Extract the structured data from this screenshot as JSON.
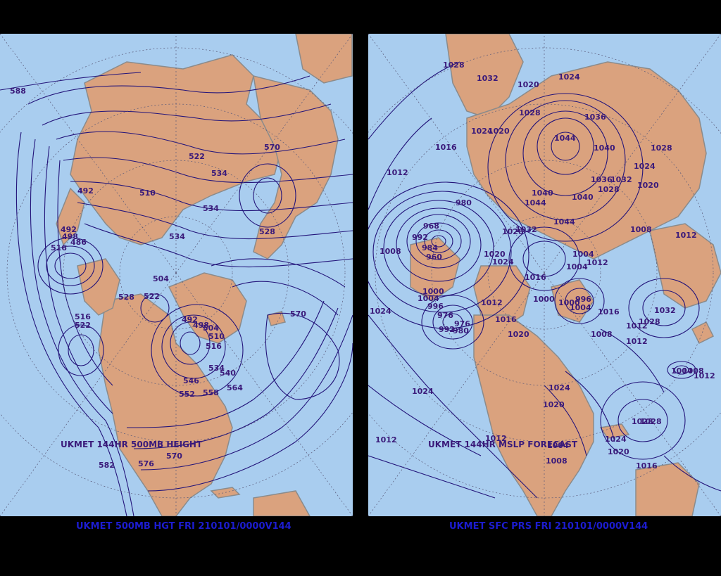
{
  "colors": {
    "ocean": "#a9cdef",
    "land": "#daa27e",
    "coast": "#8b8b8b",
    "contour": "#23147a",
    "label": "#3a1a7a",
    "footer": "#1c1cd0",
    "background": "#000000"
  },
  "left_map": {
    "inner_title": "UKMET 144HR 500MB HEIGHT",
    "footer": "UKMET 500MB HGT FRI 210101/0000V144",
    "contour_labels": [
      "588",
      "492",
      "510",
      "522",
      "534",
      "570",
      "534",
      "534",
      "528",
      "504",
      "498",
      "492",
      "486",
      "516",
      "528",
      "522",
      "516",
      "522",
      "492",
      "498",
      "504",
      "510",
      "516",
      "534",
      "540",
      "546",
      "552",
      "558",
      "564",
      "570",
      "570",
      "582",
      "576"
    ]
  },
  "right_map": {
    "inner_title": "UKMET 144HR MSLP FORECAST",
    "footer": "UKMET SFC PRS FRI 210101/0000V144",
    "contour_labels": [
      "1028",
      "1032",
      "1020",
      "1024",
      "1028",
      "1036",
      "1024",
      "1020",
      "1016",
      "1044",
      "1040",
      "1028",
      "1012",
      "1036",
      "1032",
      "1028",
      "1024",
      "1020",
      "980",
      "1040",
      "1040",
      "1044",
      "1044",
      "968",
      "992",
      "984",
      "960",
      "1032",
      "1028",
      "1008",
      "1012",
      "1008",
      "1020",
      "1024",
      "1004",
      "1004",
      "1012",
      "1000",
      "1016",
      "1000",
      "1004",
      "996",
      "1000",
      "1004",
      "1016",
      "1032",
      "1024",
      "996",
      "976",
      "992",
      "980",
      "976",
      "1012",
      "1016",
      "1008",
      "1028",
      "1020",
      "1012",
      "1024",
      "1024",
      "1020",
      "1012",
      "1028",
      "1004",
      "1008",
      "1012",
      "1012",
      "1024",
      "1028",
      "1020",
      "1016",
      "1008",
      "1004",
      "1012"
    ]
  }
}
